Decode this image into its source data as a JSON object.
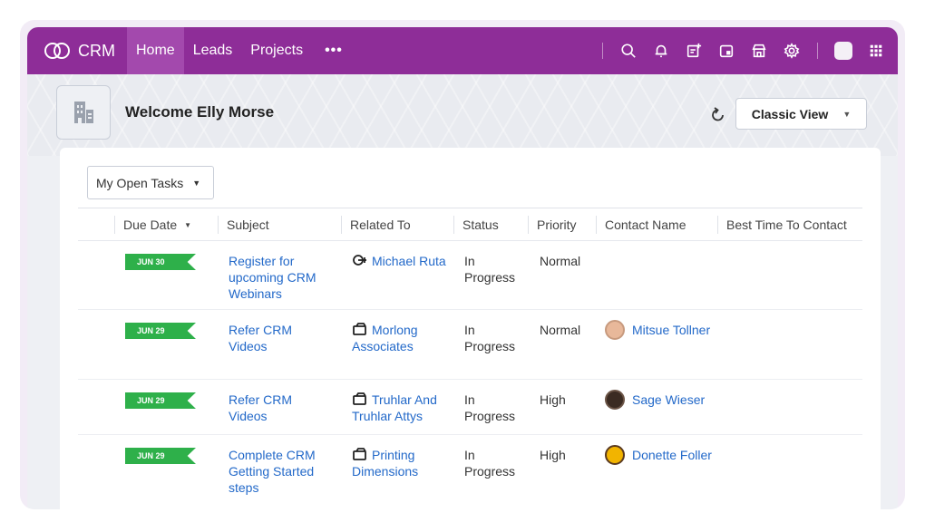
{
  "topbar": {
    "brand": "CRM",
    "tabs": [
      {
        "label": "Home"
      },
      {
        "label": "Leads"
      },
      {
        "label": "Projects"
      }
    ],
    "more": "•••",
    "icons": [
      "search-icon",
      "bell-icon",
      "new-entry-icon",
      "calendar-icon",
      "marketplace-icon",
      "settings-icon",
      "avatar",
      "apps-grid-icon"
    ]
  },
  "banner": {
    "welcome": "Welcome Elly Morse",
    "view_label": "Classic View"
  },
  "tasks": {
    "filter_label": "My Open Tasks",
    "columns": {
      "due_date": "Due Date",
      "subject": "Subject",
      "related_to": "Related To",
      "status": "Status",
      "priority": "Priority",
      "contact_name": "Contact Name",
      "best_time": "Best Time To Contact"
    },
    "rows": [
      {
        "due": "JUN 30",
        "subject": "Register for upcoming CRM Webinars",
        "related": "Michael Ruta",
        "related_type": "lead-icon",
        "status": "In Progress",
        "priority": "Normal",
        "contact": ""
      },
      {
        "due": "JUN 29",
        "subject": "Refer CRM Videos",
        "related": "Morlong Associates",
        "related_type": "account-icon",
        "status": "In Progress",
        "priority": "Normal",
        "contact": "Mitsue Tollner"
      },
      {
        "due": "JUN 29",
        "subject": "Refer CRM Videos",
        "related": "Truhlar And Truhlar Attys",
        "related_type": "account-icon",
        "status": "In Progress",
        "priority": "High",
        "contact": "Sage Wieser"
      },
      {
        "due": "JUN 29",
        "subject": "Complete CRM Getting Started steps",
        "related": "Printing Dimensions",
        "related_type": "account-icon",
        "status": "In Progress",
        "priority": "High",
        "contact": "Donette Foller"
      }
    ]
  },
  "colors": {
    "topbar": "#8e2d98",
    "active_tab": "#a349ad",
    "due_tag": "#2eb04a",
    "link": "#2369c9"
  }
}
